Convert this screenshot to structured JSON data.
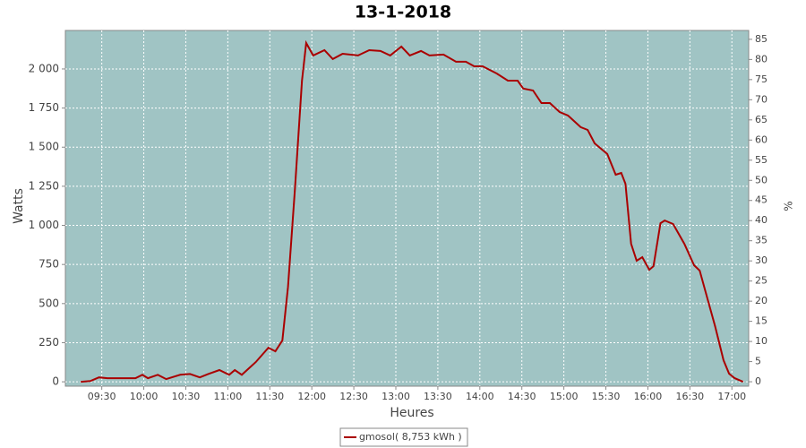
{
  "chart_data": {
    "type": "line",
    "title": "13-1-2018",
    "x_label": "Heures",
    "y_label": "Watts",
    "y2_label": "%",
    "x": [
      "09:15",
      "09:22",
      "09:28",
      "09:34",
      "09:54",
      "09:59",
      "10:03",
      "10:10",
      "10:16",
      "10:26",
      "10:33",
      "10:40",
      "10:46",
      "10:54",
      "11:01",
      "11:05",
      "11:10",
      "11:20",
      "11:29",
      "11:34",
      "11:39",
      "11:43",
      "11:48",
      "11:53",
      "11:56",
      "12:01",
      "12:09",
      "12:15",
      "12:22",
      "12:33",
      "12:41",
      "12:49",
      "12:56",
      "13:04",
      "13:10",
      "13:18",
      "13:24",
      "13:34",
      "13:43",
      "13:50",
      "13:56",
      "14:02",
      "14:12",
      "14:20",
      "14:27",
      "14:31",
      "14:38",
      "14:44",
      "14:50",
      "14:57",
      "15:03",
      "15:12",
      "15:17",
      "15:22",
      "15:31",
      "15:37",
      "15:41",
      "15:44",
      "15:48",
      "15:52",
      "15:56",
      "16:01",
      "16:04",
      "16:09",
      "16:12",
      "16:18",
      "16:26",
      "16:33",
      "16:37",
      "16:43",
      "16:48",
      "16:54",
      "16:58",
      "17:02",
      "17:08"
    ],
    "series": [
      {
        "name": "gmosol( 8,753 kWh )",
        "color": "#aa0000",
        "values": [
          0,
          5,
          28,
          23,
          23,
          45,
          23,
          45,
          17,
          45,
          50,
          28,
          50,
          75,
          45,
          75,
          45,
          126,
          218,
          195,
          264,
          607,
          1238,
          1925,
          2166,
          2086,
          2120,
          2063,
          2097,
          2086,
          2120,
          2115,
          2086,
          2143,
          2086,
          2115,
          2086,
          2092,
          2046,
          2046,
          2017,
          2017,
          1971,
          1925,
          1925,
          1874,
          1862,
          1782,
          1782,
          1725,
          1702,
          1628,
          1610,
          1524,
          1456,
          1324,
          1335,
          1266,
          883,
          774,
          797,
          716,
          739,
          1014,
          1031,
          1009,
          883,
          745,
          711,
          516,
          355,
          138,
          52,
          23,
          0
        ]
      }
    ],
    "xlim": [
      "09:04",
      "17:12"
    ],
    "xticks": [
      "09:30",
      "10:00",
      "10:30",
      "11:00",
      "11:30",
      "12:00",
      "12:30",
      "13:00",
      "13:30",
      "14:00",
      "14:30",
      "15:00",
      "15:30",
      "16:00",
      "16:30",
      "17:00"
    ],
    "ylim": [
      -28,
      2246
    ],
    "yticks": [
      0,
      250,
      500,
      750,
      {
        "value": 1000,
        "label": "1 000"
      },
      {
        "value": 1250,
        "label": "1 250"
      },
      {
        "value": 1500,
        "label": "1 500"
      },
      {
        "value": 1750,
        "label": "1 750"
      },
      {
        "value": 2000,
        "label": "2 000"
      }
    ],
    "y2lim": [
      -1.1,
      87.2
    ],
    "y2ticks": [
      0,
      5,
      10,
      15,
      20,
      25,
      30,
      35,
      40,
      45,
      50,
      55,
      60,
      65,
      70,
      75,
      80,
      85
    ],
    "grid": true,
    "plot_background": "#a0c4c4"
  }
}
